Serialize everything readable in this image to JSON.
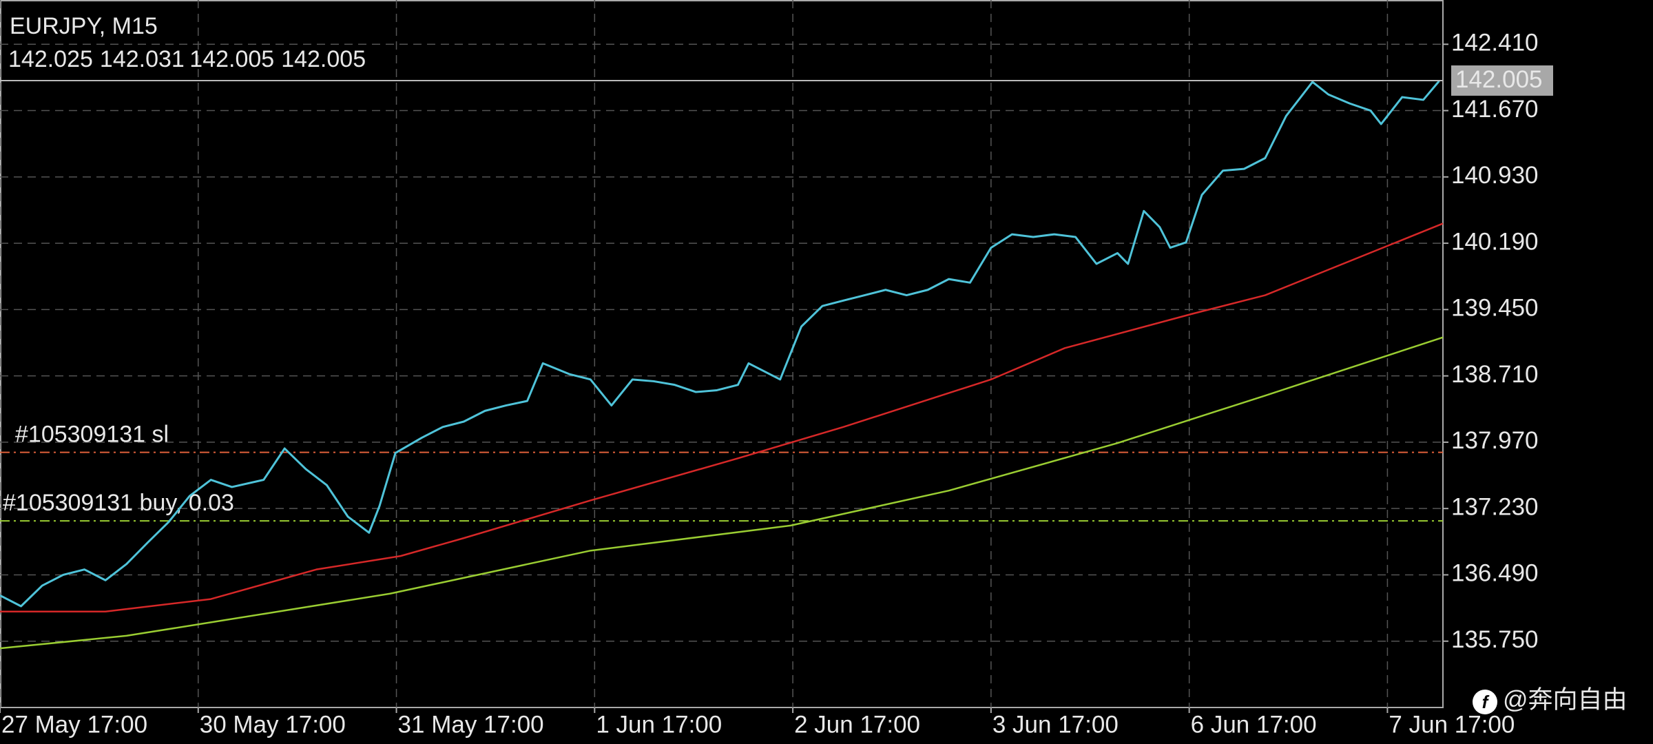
{
  "chart_data": {
    "type": "line",
    "title": "EURJPY, M15",
    "ohlc": [
      142.025,
      142.031,
      142.005,
      142.005
    ],
    "xlim": [
      0,
      7.28
    ],
    "xticks": [
      {
        "value": 0,
        "label": "27 May 17:00"
      },
      {
        "value": 1,
        "label": "30 May 17:00"
      },
      {
        "value": 2,
        "label": "31 May 17:00"
      },
      {
        "value": 3,
        "label": "1 Jun 17:00"
      },
      {
        "value": 4,
        "label": "2 Jun 17:00"
      },
      {
        "value": 5,
        "label": "3 Jun 17:00"
      },
      {
        "value": 6,
        "label": "6 Jun 17:00"
      },
      {
        "value": 7,
        "label": "7 Jun 17:00"
      }
    ],
    "ylim": [
      135.01,
      142.904
    ],
    "yticks": [
      {
        "value": 135.75,
        "label": "135.750"
      },
      {
        "value": 136.49,
        "label": "136.490"
      },
      {
        "value": 137.23,
        "label": "137.230"
      },
      {
        "value": 137.97,
        "label": "137.970"
      },
      {
        "value": 138.71,
        "label": "138.710"
      },
      {
        "value": 139.45,
        "label": "139.450"
      },
      {
        "value": 140.19,
        "label": "140.190"
      },
      {
        "value": 140.93,
        "label": "140.930"
      },
      {
        "value": 141.67,
        "label": "141.670"
      },
      {
        "value": 142.41,
        "label": "142.410"
      }
    ],
    "grid": true,
    "series": [
      {
        "color": "#4fc3d9",
        "x": [
          0,
          0.106,
          0.213,
          0.319,
          0.426,
          0.532,
          0.638,
          0.745,
          0.851,
          0.957,
          1.064,
          1.17,
          1.33,
          1.436,
          1.543,
          1.649,
          1.755,
          1.862,
          1.915,
          1.995,
          2.128,
          2.234,
          2.34,
          2.447,
          2.553,
          2.66,
          2.739,
          2.872,
          2.979,
          3.085,
          3.191,
          3.298,
          3.404,
          3.511,
          3.617,
          3.723,
          3.777,
          3.936,
          4.043,
          4.149,
          4.255,
          4.362,
          4.468,
          4.574,
          4.681,
          4.787,
          4.894,
          5.0,
          5.106,
          5.213,
          5.319,
          5.426,
          5.532,
          5.638,
          5.691,
          5.771,
          5.851,
          5.904,
          5.984,
          6.064,
          6.17,
          6.277,
          6.383,
          6.489,
          6.622,
          6.702,
          6.809,
          6.915,
          6.968,
          7.074,
          7.181,
          7.261
        ],
        "values": [
          136.26,
          136.14,
          136.37,
          136.49,
          136.55,
          136.43,
          136.61,
          136.85,
          137.08,
          137.37,
          137.55,
          137.47,
          137.55,
          137.9,
          137.67,
          137.49,
          137.14,
          136.96,
          137.26,
          137.85,
          138.02,
          138.14,
          138.2,
          138.32,
          138.38,
          138.43,
          138.85,
          138.73,
          138.67,
          138.38,
          138.67,
          138.65,
          138.61,
          138.53,
          138.55,
          138.61,
          138.85,
          138.67,
          139.26,
          139.49,
          139.55,
          139.61,
          139.67,
          139.61,
          139.67,
          139.79,
          139.75,
          140.14,
          140.29,
          140.26,
          140.29,
          140.26,
          139.96,
          140.08,
          139.96,
          140.55,
          140.37,
          140.14,
          140.2,
          140.73,
          141.0,
          141.02,
          141.14,
          141.61,
          141.99,
          141.85,
          141.75,
          141.67,
          141.52,
          141.82,
          141.79,
          142.0
        ]
      },
      {
        "color": "#d62828",
        "x": [
          0,
          0.532,
          1.064,
          1.596,
          2.021,
          2.34,
          2.979,
          3.723,
          4.255,
          5.0,
          5.372,
          6.011,
          6.383,
          7.28
        ],
        "values": [
          136.08,
          136.08,
          136.22,
          136.55,
          136.7,
          136.9,
          137.32,
          137.79,
          138.14,
          138.67,
          139.02,
          139.4,
          139.61,
          140.41
        ]
      },
      {
        "color": "#9acd32",
        "x": [
          0,
          0.638,
          1.064,
          1.968,
          2.979,
          3.989,
          4.787,
          5.638,
          6.383,
          7.28
        ],
        "values": [
          135.67,
          135.81,
          135.96,
          136.28,
          136.76,
          137.04,
          137.43,
          137.96,
          138.49,
          139.14
        ]
      }
    ],
    "orders": [
      {
        "label": "#105309131 sl",
        "price": 137.857,
        "color": "#e0603a"
      },
      {
        "label": "#105309131 buy, 0.03",
        "price": 137.092,
        "color": "#9acd32"
      }
    ],
    "watermark": "@奔向自由"
  }
}
